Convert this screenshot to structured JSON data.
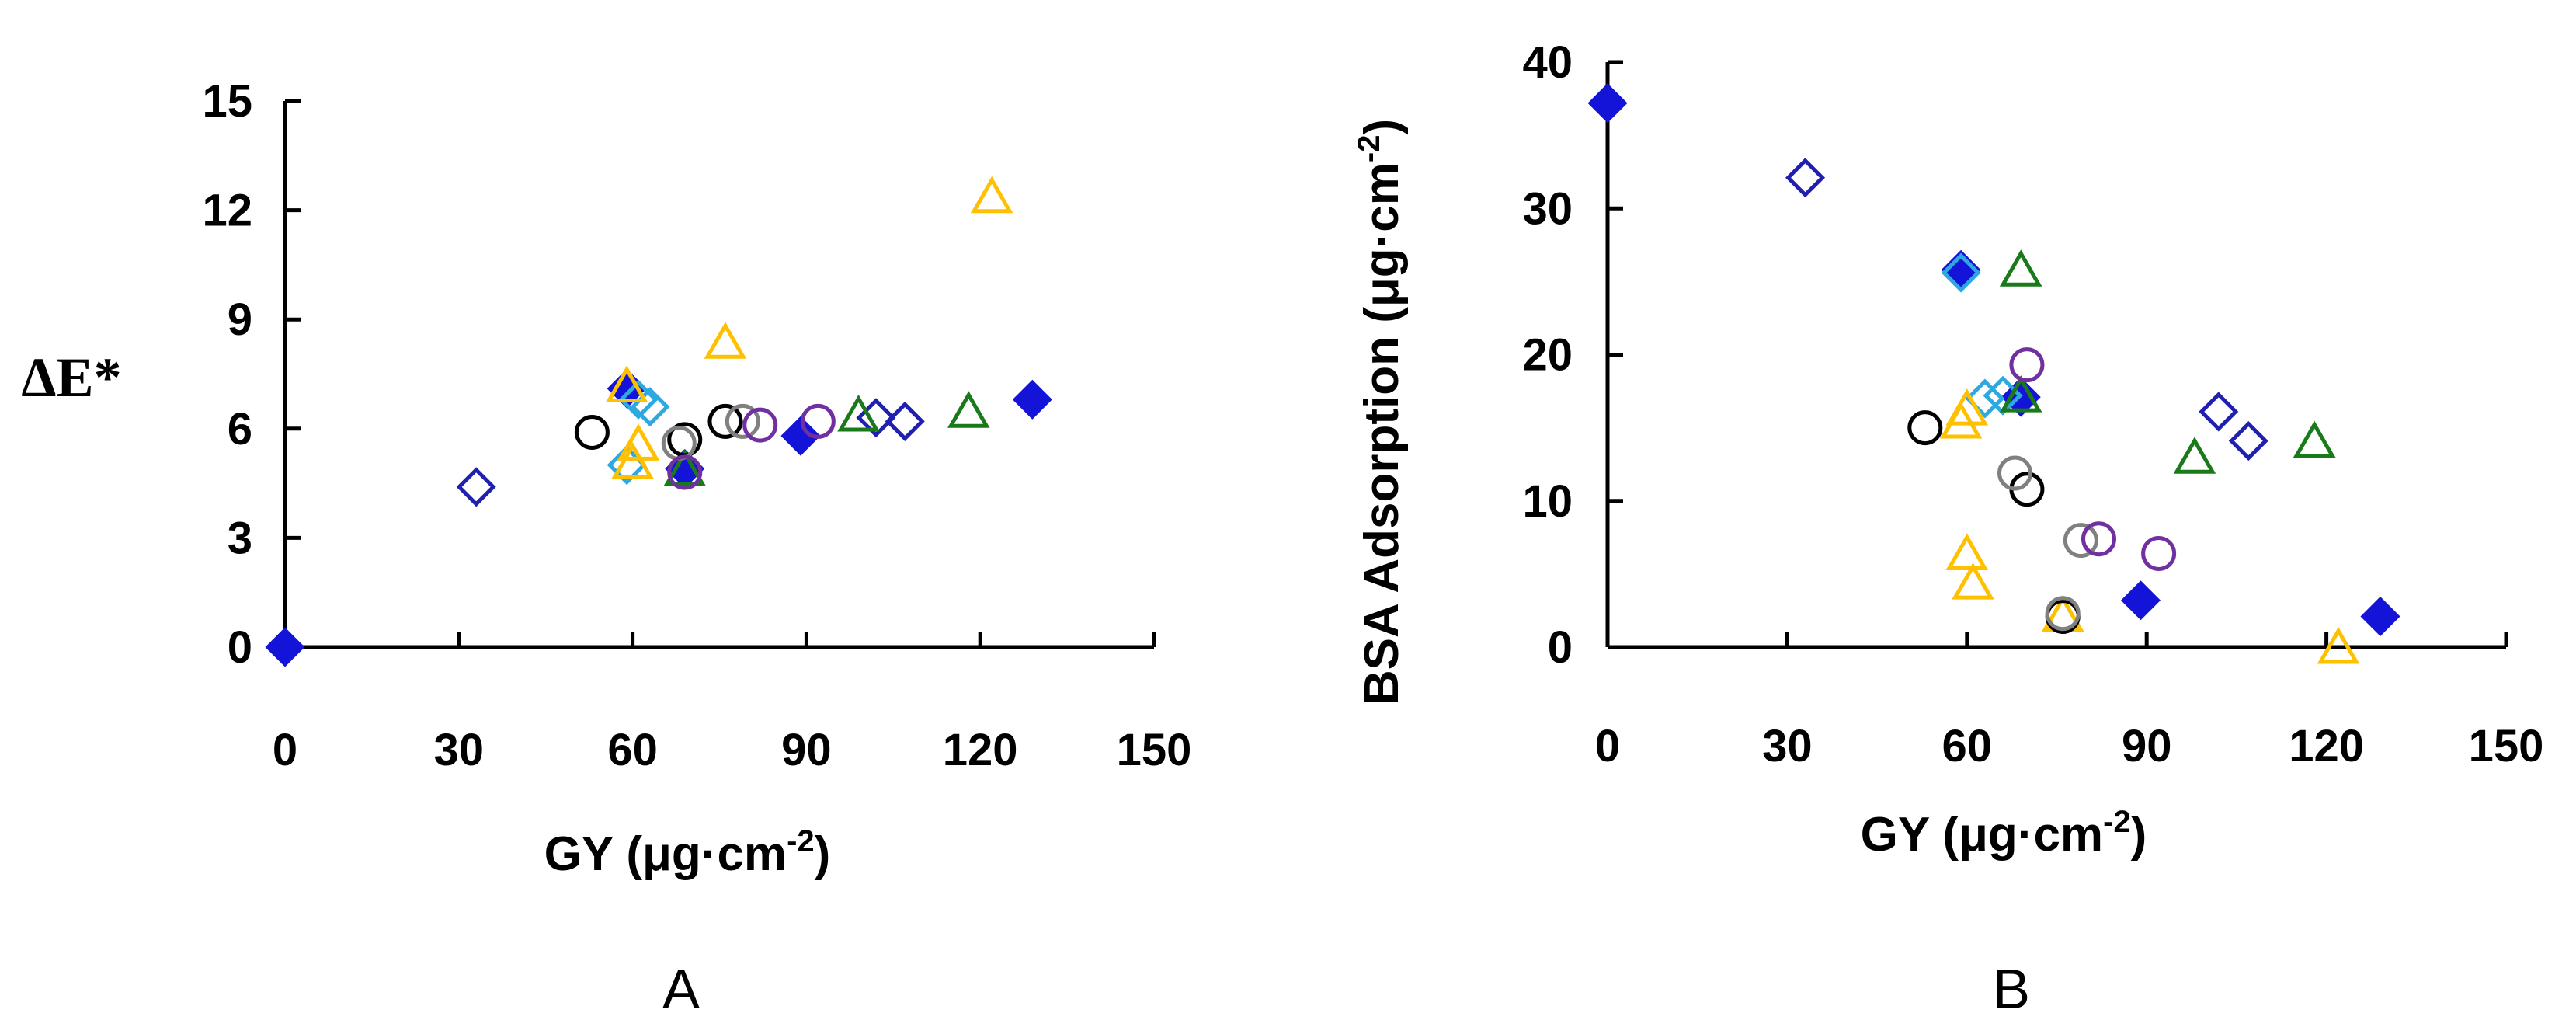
{
  "chart_data": [
    {
      "type": "scatter",
      "panel_label": "A",
      "xlabel_main": "GY (μg·cm",
      "xlabel_sup": "-2",
      "xlabel_end": ")",
      "ylabel": "ΔE*",
      "xlim": [
        0,
        150
      ],
      "ylim": [
        0,
        15
      ],
      "xticks": [
        "0",
        "30",
        "60",
        "90",
        "120",
        "150"
      ],
      "yticks": [
        "0",
        "3",
        "6",
        "9",
        "12",
        "15"
      ],
      "xtick_values": [
        0,
        30,
        60,
        90,
        120,
        150
      ],
      "ytick_values": [
        0,
        3,
        6,
        9,
        12,
        15
      ],
      "grid": false,
      "series": [
        {
          "marker": "diamond-filled",
          "color": "#1414d8",
          "points": [
            [
              0,
              0
            ],
            [
              59,
              7.1
            ],
            [
              69,
              4.9
            ],
            [
              89,
              5.8
            ],
            [
              129,
              6.8
            ]
          ]
        },
        {
          "marker": "diamond-open",
          "color": "#1f1fb0",
          "points": [
            [
              33,
              4.4
            ],
            [
              102,
              6.3
            ],
            [
              107,
              6.2
            ]
          ]
        },
        {
          "marker": "diamond-open",
          "color": "#2ea8e0",
          "points": [
            [
              59,
              5.0
            ],
            [
              61,
              6.8
            ],
            [
              63,
              6.6
            ]
          ]
        },
        {
          "marker": "triangle-open",
          "color": "#ffc000",
          "points": [
            [
              59,
              7.1
            ],
            [
              60,
              5.0
            ],
            [
              61,
              5.5
            ],
            [
              76,
              8.3
            ],
            [
              122,
              12.3
            ]
          ]
        },
        {
          "marker": "triangle-open",
          "color": "#1a7a1a",
          "points": [
            [
              69,
              4.8
            ],
            [
              99,
              6.3
            ],
            [
              118,
              6.4
            ]
          ]
        },
        {
          "marker": "circle-open",
          "color": "#000000",
          "points": [
            [
              53,
              5.9
            ],
            [
              69,
              5.7
            ],
            [
              76,
              6.2
            ]
          ]
        },
        {
          "marker": "circle-open",
          "color": "#808080",
          "points": [
            [
              68,
              5.6
            ],
            [
              79,
              6.2
            ]
          ]
        },
        {
          "marker": "circle-open",
          "color": "#7030a0",
          "points": [
            [
              69,
              4.8
            ],
            [
              82,
              6.1
            ],
            [
              92,
              6.2
            ]
          ]
        }
      ]
    },
    {
      "type": "scatter",
      "panel_label": "B",
      "xlabel_main": "GY (μg·cm",
      "xlabel_sup": "-2",
      "xlabel_end": ")",
      "ylabel_main": "BSA Adsorption (μg·cm",
      "ylabel_sup": "-2",
      "ylabel_end": ")",
      "xlim": [
        0,
        150
      ],
      "ylim": [
        0,
        40
      ],
      "xticks": [
        "0",
        "30",
        "60",
        "90",
        "120",
        "150"
      ],
      "yticks": [
        "0",
        "10",
        "20",
        "30",
        "40"
      ],
      "xtick_values": [
        0,
        30,
        60,
        90,
        120,
        150
      ],
      "ytick_values": [
        0,
        10,
        20,
        30,
        40
      ],
      "grid": false,
      "series": [
        {
          "marker": "diamond-filled",
          "color": "#1414d8",
          "points": [
            [
              0,
              37.2
            ],
            [
              59,
              25.8
            ],
            [
              69,
              17.1
            ],
            [
              89,
              3.2
            ],
            [
              129,
              2.1
            ]
          ]
        },
        {
          "marker": "diamond-open",
          "color": "#1f1fb0",
          "points": [
            [
              33,
              32.1
            ],
            [
              102,
              16.1
            ],
            [
              107,
              14.1
            ]
          ]
        },
        {
          "marker": "diamond-open",
          "color": "#2ea8e0",
          "points": [
            [
              59,
              25.6
            ],
            [
              63,
              17.0
            ],
            [
              66,
              17.2
            ]
          ]
        },
        {
          "marker": "triangle-open",
          "color": "#ffc000",
          "points": [
            [
              59,
              15.2
            ],
            [
              60,
              16.1
            ],
            [
              60,
              6.2
            ],
            [
              61,
              4.2
            ],
            [
              76,
              2.0
            ],
            [
              122,
              -0.2
            ]
          ]
        },
        {
          "marker": "triangle-open",
          "color": "#1a7a1a",
          "points": [
            [
              69,
              25.6
            ],
            [
              69,
              17.0
            ],
            [
              98,
              12.8
            ],
            [
              118,
              13.9
            ]
          ]
        },
        {
          "marker": "circle-open",
          "color": "#000000",
          "points": [
            [
              53,
              15.0
            ],
            [
              70,
              10.8
            ],
            [
              76,
              2.1
            ]
          ]
        },
        {
          "marker": "circle-open",
          "color": "#808080",
          "points": [
            [
              68,
              11.9
            ],
            [
              76,
              2.3
            ],
            [
              79,
              7.3
            ]
          ]
        },
        {
          "marker": "circle-open",
          "color": "#7030a0",
          "points": [
            [
              70,
              19.3
            ],
            [
              82,
              7.4
            ],
            [
              92,
              6.4
            ]
          ]
        }
      ]
    }
  ]
}
